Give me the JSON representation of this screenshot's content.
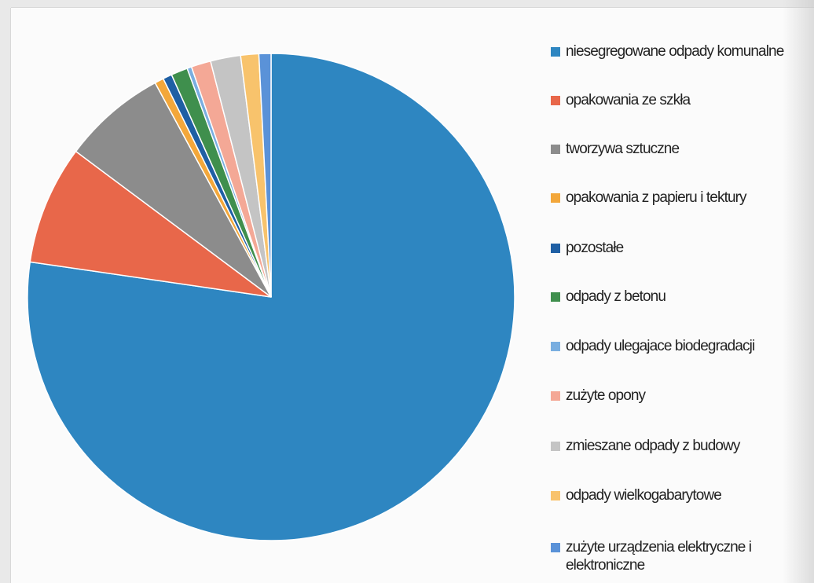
{
  "chart_data": {
    "type": "pie",
    "title": "",
    "start_angle_deg": 0,
    "direction": "clockwise",
    "legend_position": "right",
    "series": [
      {
        "name": "niesegregowane odpady komunalne",
        "value": 77.3,
        "color": "#2e86c1"
      },
      {
        "name": "opakowania ze szkła",
        "value": 7.9,
        "color": "#e8674a"
      },
      {
        "name": "tworzywa sztuczne",
        "value": 6.9,
        "color": "#8c8c8c"
      },
      {
        "name": "opakowania z papieru i tektury",
        "value": 0.6,
        "color": "#f3a73a"
      },
      {
        "name": "pozostałe",
        "value": 0.6,
        "color": "#1f5fa4"
      },
      {
        "name": "odpady z betonu",
        "value": 1.1,
        "color": "#3f8f4d"
      },
      {
        "name": "odpady ulegające biodegradacji",
        "value": 0.3,
        "color": "#79aee0"
      },
      {
        "name": "zużyte opony",
        "value": 1.3,
        "color": "#f4a896"
      },
      {
        "name": "zmieszane odpady z budowy",
        "value": 2.0,
        "color": "#c4c4c4"
      },
      {
        "name": "odpady wielkogabarytowe",
        "value": 1.2,
        "color": "#f8c36c"
      },
      {
        "name": "zużyte urządzenia elektryczne i elektroniczne",
        "value": 0.8,
        "color": "#5a92d8"
      }
    ]
  },
  "legend": {
    "items": [
      "niesegregowane odpady komunalne",
      "opakowania ze szkła",
      "tworzywa sztuczne",
      "opakowania z papieru i tektury",
      "pozostałe",
      "odpady z betonu",
      "odpady ulegajace biodegradacji",
      "zużyte opony",
      "zmieszane odpady z budowy",
      "odpady wielkogabarytowe",
      "zużyte urządzenia elektryczne i elektroniczne"
    ]
  }
}
